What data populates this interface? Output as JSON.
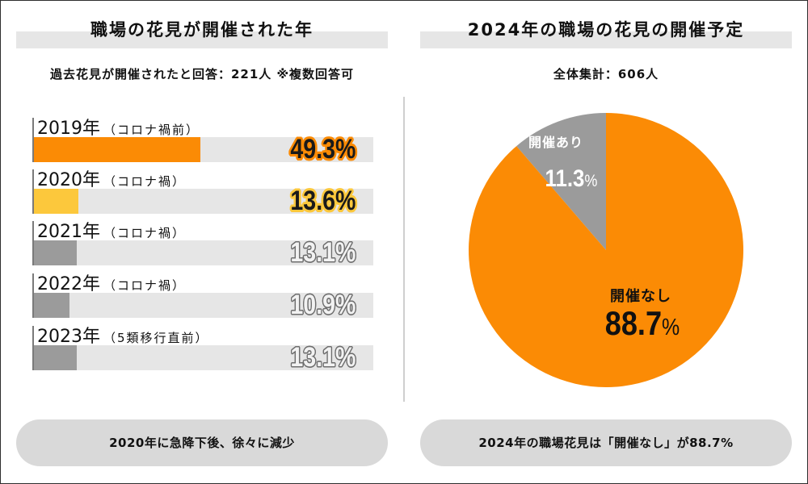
{
  "chart_data": [
    {
      "type": "bar",
      "orientation": "horizontal",
      "title": "職場の花見が開催された年",
      "subtitle": "過去花見が開催されたと回答：221人 ※複数回答可",
      "categories": [
        "2019年",
        "2020年",
        "2021年",
        "2022年",
        "2023年"
      ],
      "category_notes": [
        "（コロナ禍前）",
        "（コロナ禍）",
        "（コロナ禍）",
        "（コロナ禍）",
        "（5類移行直前）"
      ],
      "values": [
        49.3,
        13.6,
        13.1,
        10.9,
        13.1
      ],
      "unit": "%",
      "xlim": [
        0,
        100
      ],
      "grid": false,
      "bar_colors": [
        "#fb8b05",
        "#fcc83c",
        "#9b9b9b",
        "#9b9b9b",
        "#9b9b9b"
      ],
      "value_label_colors": [
        "#1a1a1a",
        "#1a1a1a",
        "#f2f2f2",
        "#f2f2f2",
        "#f2f2f2"
      ],
      "value_label_outline_colors": [
        "#fb8b05",
        "#fcc83c",
        "#6e6e6e",
        "#6e6e6e",
        "#6e6e6e"
      ]
    },
    {
      "type": "pie",
      "title": "2024年の職場の花見の開催予定",
      "subtitle": "全体集計：606人",
      "unit": "%",
      "slices": [
        {
          "label": "開催あり",
          "value": 11.3,
          "color": "#9b9b9b",
          "text_color": "#ffffff"
        },
        {
          "label": "開催なし",
          "value": 88.7,
          "color": "#fb8b05",
          "text_color": "#111111"
        }
      ]
    }
  ],
  "footer_notes": {
    "left": "2020年に急降下後、徐々に減少",
    "right": "2024年の職場花見は「開催なし」が88.7%"
  }
}
